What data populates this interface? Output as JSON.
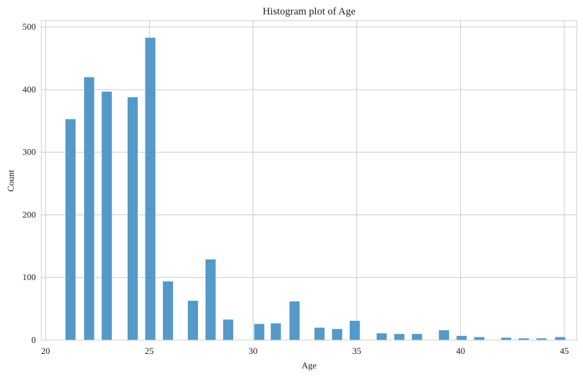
{
  "chart_data": {
    "type": "bar",
    "title": "Histogram plot of Age",
    "xlabel": "Age",
    "ylabel": "Count",
    "xlim": [
      19.8,
      45.6
    ],
    "ylim": [
      0,
      510
    ],
    "xticks": [
      20,
      25,
      30,
      35,
      40,
      45
    ],
    "yticks": [
      0,
      100,
      200,
      300,
      400,
      500
    ],
    "grid": true,
    "bar_color": "#5599c8",
    "grid_color": "#cccccc",
    "bin_width": 0.5,
    "x": [
      21.2,
      22.1,
      22.95,
      24.2,
      25.05,
      25.9,
      27.1,
      27.95,
      28.8,
      30.3,
      31.1,
      32.0,
      33.2,
      34.05,
      34.9,
      36.2,
      37.05,
      37.9,
      39.2,
      40.05,
      40.9,
      42.2,
      43.05,
      43.9,
      44.8
    ],
    "values": [
      353,
      420,
      397,
      388,
      483,
      94,
      63,
      129,
      33,
      26,
      27,
      62,
      20,
      18,
      31,
      11,
      10,
      10,
      16,
      7,
      5,
      4,
      3,
      3,
      5
    ]
  }
}
